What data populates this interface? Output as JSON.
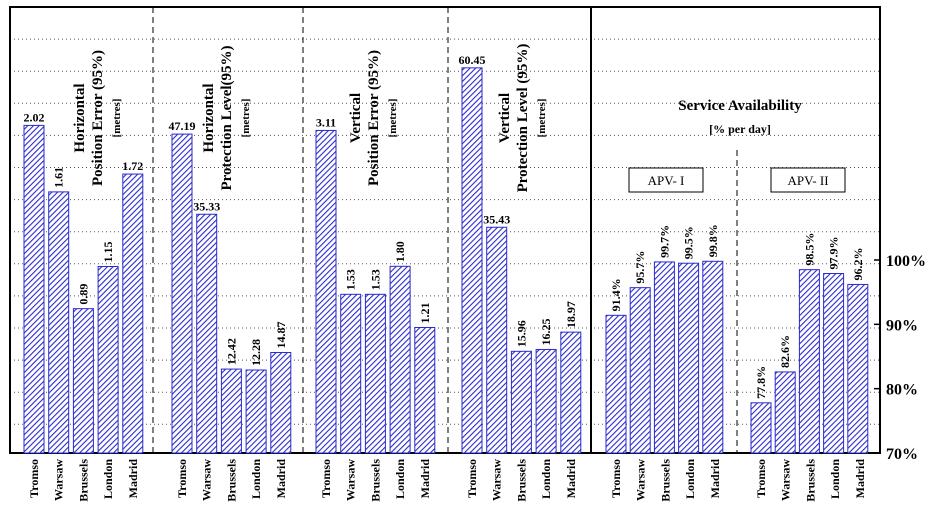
{
  "chart_data": {
    "type": "bar",
    "categories": [
      "Tromso",
      "Warsaw",
      "Brussels",
      "London",
      "Madrid"
    ],
    "panels": [
      {
        "title_lines": [
          "Horizontal",
          "Position Error (95%)"
        ],
        "unit": "[metres]",
        "values": [
          2.02,
          1.61,
          0.89,
          1.15,
          1.72
        ],
        "labels": [
          "2.02",
          "1.61",
          "0.89",
          "1.15",
          "1.72"
        ],
        "ylim": [
          0,
          2.75
        ]
      },
      {
        "title_lines": [
          "Horizontal",
          "Protection Level(95%)"
        ],
        "unit": "[metres]",
        "values": [
          47.19,
          35.33,
          12.42,
          12.28,
          14.87
        ],
        "labels": [
          "47.19",
          "35.33",
          "12.42",
          "12.28",
          "14.87"
        ],
        "ylim": [
          0,
          66
        ]
      },
      {
        "title_lines": [
          "Vertical",
          "Position Error (95%)"
        ],
        "unit": "[metres]",
        "values": [
          3.11,
          1.53,
          1.53,
          1.8,
          1.21
        ],
        "labels": [
          "3.11",
          "1.53",
          "1.53",
          "1.80",
          "1.21"
        ],
        "ylim": [
          0,
          4.3
        ]
      },
      {
        "title_lines": [
          "Vertical",
          "Protection Level (95%)"
        ],
        "unit": "[metres]",
        "values": [
          60.45,
          35.43,
          15.96,
          16.25,
          18.97
        ],
        "labels": [
          "60.45",
          "35.43",
          "15.96",
          "16.25",
          "18.97"
        ],
        "ylim": [
          0,
          70
        ]
      }
    ],
    "service": {
      "title": "Service Availability",
      "unit": "[% per day]",
      "groups": [
        {
          "name": "APV- I",
          "values": [
            91.4,
            95.7,
            99.7,
            99.5,
            99.8
          ],
          "labels": [
            "91.4%",
            "95.7%",
            "99.7%",
            "99.5%",
            "99.8%"
          ]
        },
        {
          "name": "APV- II",
          "values": [
            77.8,
            82.6,
            98.5,
            97.9,
            96.2
          ],
          "labels": [
            "77.8%",
            "82.6%",
            "98.5%",
            "97.9%",
            "96.2%"
          ]
        }
      ],
      "ylim": [
        70,
        100
      ],
      "yticks": [
        100,
        90,
        80,
        70
      ],
      "ytick_labels": [
        "100%",
        "90%",
        "80%",
        "70%"
      ]
    },
    "colors": {
      "bar": "#2a2acf",
      "hatch_bg": "#ffffff",
      "grid": "#000000"
    },
    "grid": true
  }
}
